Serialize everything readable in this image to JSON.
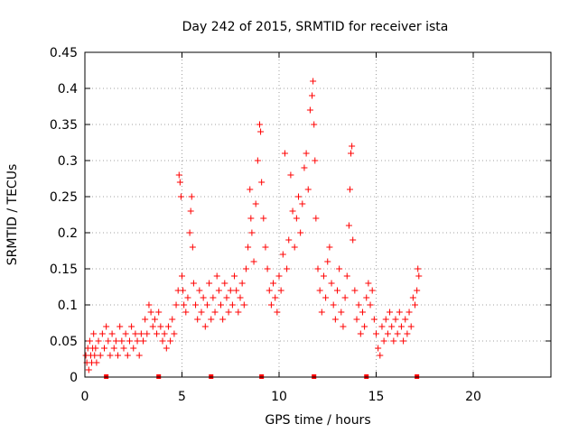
{
  "chart_data": {
    "type": "scatter",
    "title": "Day 242 of 2015, SRMTID for receiver ista",
    "xlabel": "GPS time / hours",
    "ylabel": "SRMTID / TECUs",
    "xlim": [
      0,
      24
    ],
    "ylim": [
      0,
      0.45
    ],
    "xticks": [
      0,
      5,
      10,
      15,
      20
    ],
    "xtick_labels": [
      "0",
      "5",
      "10",
      "15",
      "20"
    ],
    "yticks": [
      0,
      0.05,
      0.1,
      0.15,
      0.2,
      0.25,
      0.3,
      0.35,
      0.4,
      0.45
    ],
    "ytick_labels": [
      "0",
      "0.05",
      "0.1",
      "0.15",
      "0.2",
      "0.25",
      "0.3",
      "0.35",
      "0.4",
      "0.45"
    ],
    "grid": true,
    "legend": "none",
    "marker": "plus",
    "color": "#ff0000",
    "series": [
      {
        "points": [
          [
            0.05,
            0.03
          ],
          [
            0.1,
            0.02
          ],
          [
            0.15,
            0.04
          ],
          [
            0.2,
            0.01
          ],
          [
            0.25,
            0.05
          ],
          [
            0.3,
            0.03
          ],
          [
            0.35,
            0.02
          ],
          [
            0.4,
            0.04
          ],
          [
            0.45,
            0.06
          ],
          [
            0.5,
            0.03
          ],
          [
            0.55,
            0.04
          ],
          [
            0.6,
            0.02
          ],
          [
            0.7,
            0.05
          ],
          [
            0.8,
            0.03
          ],
          [
            0.9,
            0.06
          ],
          [
            1.0,
            0.04
          ],
          [
            1.1,
            0.07
          ],
          [
            1.2,
            0.05
          ],
          [
            1.3,
            0.03
          ],
          [
            1.4,
            0.06
          ],
          [
            1.5,
            0.04
          ],
          [
            1.6,
            0.05
          ],
          [
            1.7,
            0.03
          ],
          [
            1.8,
            0.07
          ],
          [
            1.9,
            0.05
          ],
          [
            2.0,
            0.04
          ],
          [
            2.1,
            0.06
          ],
          [
            2.2,
            0.03
          ],
          [
            2.3,
            0.05
          ],
          [
            2.4,
            0.07
          ],
          [
            2.5,
            0.04
          ],
          [
            2.6,
            0.06
          ],
          [
            2.7,
            0.05
          ],
          [
            2.8,
            0.03
          ],
          [
            2.9,
            0.06
          ],
          [
            3.0,
            0.05
          ],
          [
            3.1,
            0.08
          ],
          [
            3.2,
            0.06
          ],
          [
            3.3,
            0.1
          ],
          [
            3.4,
            0.09
          ],
          [
            3.5,
            0.07
          ],
          [
            3.6,
            0.08
          ],
          [
            3.7,
            0.06
          ],
          [
            3.8,
            0.09
          ],
          [
            3.9,
            0.07
          ],
          [
            4.0,
            0.05
          ],
          [
            4.1,
            0.06
          ],
          [
            4.2,
            0.04
          ],
          [
            4.3,
            0.07
          ],
          [
            4.4,
            0.05
          ],
          [
            4.5,
            0.08
          ],
          [
            4.6,
            0.06
          ],
          [
            4.7,
            0.1
          ],
          [
            4.8,
            0.12
          ],
          [
            4.85,
            0.28
          ],
          [
            4.9,
            0.27
          ],
          [
            4.95,
            0.25
          ],
          [
            5.0,
            0.14
          ],
          [
            5.05,
            0.12
          ],
          [
            5.1,
            0.1
          ],
          [
            5.2,
            0.09
          ],
          [
            5.3,
            0.11
          ],
          [
            5.4,
            0.2
          ],
          [
            5.45,
            0.23
          ],
          [
            5.5,
            0.25
          ],
          [
            5.55,
            0.18
          ],
          [
            5.6,
            0.13
          ],
          [
            5.7,
            0.1
          ],
          [
            5.8,
            0.08
          ],
          [
            5.9,
            0.12
          ],
          [
            6.0,
            0.09
          ],
          [
            6.1,
            0.11
          ],
          [
            6.2,
            0.07
          ],
          [
            6.3,
            0.1
          ],
          [
            6.4,
            0.13
          ],
          [
            6.5,
            0.08
          ],
          [
            6.6,
            0.11
          ],
          [
            6.7,
            0.09
          ],
          [
            6.8,
            0.14
          ],
          [
            6.9,
            0.12
          ],
          [
            7.0,
            0.1
          ],
          [
            7.1,
            0.08
          ],
          [
            7.2,
            0.13
          ],
          [
            7.3,
            0.11
          ],
          [
            7.4,
            0.09
          ],
          [
            7.5,
            0.12
          ],
          [
            7.6,
            0.1
          ],
          [
            7.7,
            0.14
          ],
          [
            7.8,
            0.12
          ],
          [
            7.9,
            0.09
          ],
          [
            8.0,
            0.11
          ],
          [
            8.1,
            0.13
          ],
          [
            8.2,
            0.1
          ],
          [
            8.3,
            0.15
          ],
          [
            8.4,
            0.18
          ],
          [
            8.5,
            0.26
          ],
          [
            8.55,
            0.22
          ],
          [
            8.6,
            0.2
          ],
          [
            8.7,
            0.16
          ],
          [
            8.8,
            0.24
          ],
          [
            8.9,
            0.3
          ],
          [
            9.0,
            0.35
          ],
          [
            9.05,
            0.34
          ],
          [
            9.1,
            0.27
          ],
          [
            9.2,
            0.22
          ],
          [
            9.3,
            0.18
          ],
          [
            9.4,
            0.15
          ],
          [
            9.5,
            0.12
          ],
          [
            9.6,
            0.1
          ],
          [
            9.7,
            0.13
          ],
          [
            9.8,
            0.11
          ],
          [
            9.9,
            0.09
          ],
          [
            10.0,
            0.14
          ],
          [
            10.1,
            0.12
          ],
          [
            10.2,
            0.17
          ],
          [
            10.3,
            0.31
          ],
          [
            10.4,
            0.15
          ],
          [
            10.5,
            0.19
          ],
          [
            10.6,
            0.28
          ],
          [
            10.7,
            0.23
          ],
          [
            10.8,
            0.18
          ],
          [
            10.9,
            0.22
          ],
          [
            11.0,
            0.25
          ],
          [
            11.1,
            0.2
          ],
          [
            11.2,
            0.24
          ],
          [
            11.3,
            0.29
          ],
          [
            11.4,
            0.31
          ],
          [
            11.5,
            0.26
          ],
          [
            11.6,
            0.37
          ],
          [
            11.7,
            0.39
          ],
          [
            11.75,
            0.41
          ],
          [
            11.8,
            0.35
          ],
          [
            11.85,
            0.3
          ],
          [
            11.9,
            0.22
          ],
          [
            12.0,
            0.15
          ],
          [
            12.1,
            0.12
          ],
          [
            12.2,
            0.09
          ],
          [
            12.3,
            0.14
          ],
          [
            12.4,
            0.11
          ],
          [
            12.5,
            0.16
          ],
          [
            12.6,
            0.18
          ],
          [
            12.7,
            0.13
          ],
          [
            12.8,
            0.1
          ],
          [
            12.9,
            0.08
          ],
          [
            13.0,
            0.12
          ],
          [
            13.1,
            0.15
          ],
          [
            13.2,
            0.09
          ],
          [
            13.3,
            0.07
          ],
          [
            13.4,
            0.11
          ],
          [
            13.5,
            0.14
          ],
          [
            13.6,
            0.21
          ],
          [
            13.65,
            0.26
          ],
          [
            13.7,
            0.31
          ],
          [
            13.75,
            0.32
          ],
          [
            13.8,
            0.19
          ],
          [
            13.9,
            0.12
          ],
          [
            14.0,
            0.08
          ],
          [
            14.1,
            0.1
          ],
          [
            14.2,
            0.06
          ],
          [
            14.3,
            0.09
          ],
          [
            14.4,
            0.07
          ],
          [
            14.5,
            0.11
          ],
          [
            14.6,
            0.13
          ],
          [
            14.7,
            0.1
          ],
          [
            14.8,
            0.12
          ],
          [
            14.9,
            0.08
          ],
          [
            15.0,
            0.06
          ],
          [
            15.1,
            0.04
          ],
          [
            15.2,
            0.03
          ],
          [
            15.3,
            0.07
          ],
          [
            15.4,
            0.05
          ],
          [
            15.5,
            0.08
          ],
          [
            15.6,
            0.06
          ],
          [
            15.7,
            0.09
          ],
          [
            15.8,
            0.07
          ],
          [
            15.9,
            0.05
          ],
          [
            16.0,
            0.08
          ],
          [
            16.1,
            0.06
          ],
          [
            16.2,
            0.09
          ],
          [
            16.3,
            0.07
          ],
          [
            16.4,
            0.05
          ],
          [
            16.5,
            0.08
          ],
          [
            16.6,
            0.06
          ],
          [
            16.7,
            0.09
          ],
          [
            16.8,
            0.07
          ],
          [
            16.9,
            0.11
          ],
          [
            17.0,
            0.1
          ],
          [
            17.1,
            0.12
          ],
          [
            17.15,
            0.15
          ],
          [
            17.2,
            0.14
          ]
        ]
      }
    ],
    "axis_markers_x": [
      1.1,
      3.8,
      6.5,
      9.1,
      11.8,
      14.5,
      17.1
    ]
  }
}
